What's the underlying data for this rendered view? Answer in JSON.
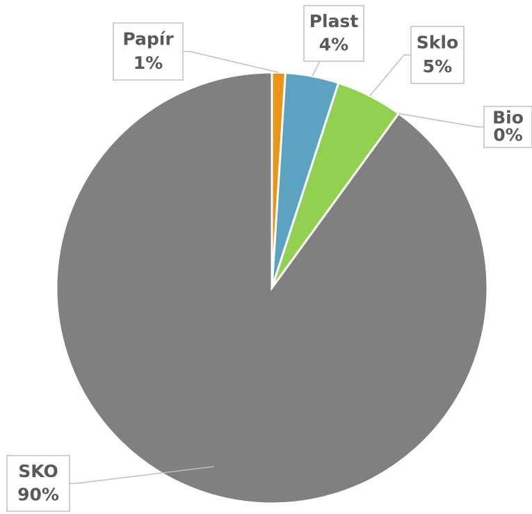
{
  "chart_data": {
    "type": "pie",
    "categories": [
      "Papír",
      "Plast",
      "Sklo",
      "Bio",
      "SKO"
    ],
    "values": [
      1,
      4,
      5,
      0,
      90
    ],
    "value_labels": [
      "1%",
      "4%",
      "5%",
      "0%",
      "90%"
    ],
    "colors": [
      "#e8941a",
      "#5ba3c0",
      "#92d050",
      "#c0504d",
      "#808080"
    ]
  }
}
